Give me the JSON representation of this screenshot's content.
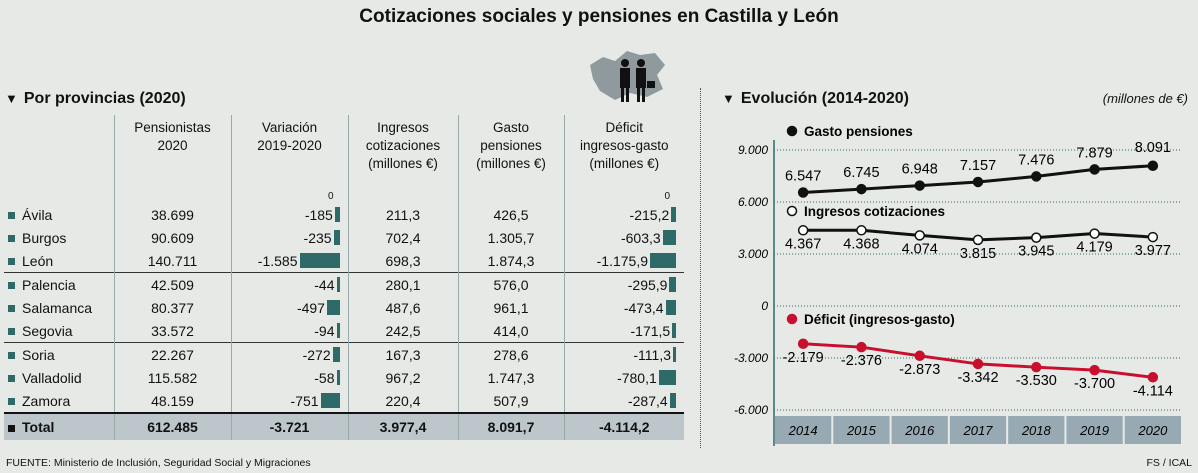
{
  "title": "Cotizaciones sociales y pensiones en Castilla y León",
  "left_header": "Por provincias (2020)",
  "right_header": "Evolución (2014-2020)",
  "units": "(millones de €)",
  "source": "FUENTE: Ministerio de Inclusión, Seguridad Social y Migraciones",
  "credit": "FS / ICAL",
  "table": {
    "columns": [
      "",
      "Pensionistas\n2020",
      "Variación\n2019-2020",
      "Ingresos\ncotizaciones\n(millones €)",
      "Gasto\npensiones\n(millones €)",
      "Déficit\ningresos-gasto\n(millones €)"
    ],
    "zero_label": "0",
    "rows": [
      {
        "name": "Ávila",
        "pens": "38.699",
        "var": "-185",
        "var_v": -185,
        "ing": "211,3",
        "gas": "426,5",
        "def": "-215,2",
        "def_v": -215.2
      },
      {
        "name": "Burgos",
        "pens": "90.609",
        "var": "-235",
        "var_v": -235,
        "ing": "702,4",
        "gas": "1.305,7",
        "def": "-603,3",
        "def_v": -603.3
      },
      {
        "name": "León",
        "pens": "140.711",
        "var": "-1.585",
        "var_v": -1585,
        "ing": "698,3",
        "gas": "1.874,3",
        "def": "-1.175,9",
        "def_v": -1175.9
      },
      {
        "name": "Palencia",
        "pens": "42.509",
        "var": "-44",
        "var_v": -44,
        "ing": "280,1",
        "gas": "576,0",
        "def": "-295,9",
        "def_v": -295.9
      },
      {
        "name": "Salamanca",
        "pens": "80.377",
        "var": "-497",
        "var_v": -497,
        "ing": "487,6",
        "gas": "961,1",
        "def": "-473,4",
        "def_v": -473.4
      },
      {
        "name": "Segovia",
        "pens": "33.572",
        "var": "-94",
        "var_v": -94,
        "ing": "242,5",
        "gas": "414,0",
        "def": "-171,5",
        "def_v": -171.5
      },
      {
        "name": "Soria",
        "pens": "22.267",
        "var": "-272",
        "var_v": -272,
        "ing": "167,3",
        "gas": "278,6",
        "def": "-111,3",
        "def_v": -111.3
      },
      {
        "name": "Valladolid",
        "pens": "115.582",
        "var": "-58",
        "var_v": -58,
        "ing": "967,2",
        "gas": "1.747,3",
        "def": "-780,1",
        "def_v": -780.1
      },
      {
        "name": "Zamora",
        "pens": "48.159",
        "var": "-751",
        "var_v": -751,
        "ing": "220,4",
        "gas": "507,9",
        "def": "-287,4",
        "def_v": -287.4
      }
    ],
    "total": {
      "name": "Total",
      "pens": "612.485",
      "var": "-3.721",
      "ing": "3.977,4",
      "gas": "8.091,7",
      "def": "-4.114,2"
    }
  },
  "chart_data": {
    "type": "line",
    "x": [
      "2014",
      "2015",
      "2016",
      "2017",
      "2018",
      "2019",
      "2020"
    ],
    "ylim": [
      -6000,
      9000
    ],
    "yticks": [
      {
        "v": 9000,
        "label": "9.000"
      },
      {
        "v": 6000,
        "label": "6.000"
      },
      {
        "v": 3000,
        "label": "3.000"
      },
      {
        "v": 0,
        "label": "0"
      },
      {
        "v": -3000,
        "label": "-3.000"
      },
      {
        "v": -6000,
        "label": "-6.000"
      }
    ],
    "series": [
      {
        "name": "Gasto pensiones",
        "color": "#111111",
        "marker": "filled",
        "values": [
          6547,
          6745,
          6948,
          7157,
          7476,
          7879,
          8091
        ],
        "labels": [
          "6.547",
          "6.745",
          "6.948",
          "7.157",
          "7.476",
          "7.879",
          "8.091"
        ]
      },
      {
        "name": "Ingresos cotizaciones",
        "color": "#111111",
        "marker": "open",
        "values": [
          4367,
          4368,
          4074,
          3815,
          3945,
          4179,
          3977
        ],
        "labels": [
          "4.367",
          "4.368",
          "4.074",
          "3.815",
          "3.945",
          "4.179",
          "3.977"
        ]
      },
      {
        "name": "Déficit (ingresos-gasto)",
        "color": "#c8102e",
        "marker": "filled",
        "values": [
          -2179,
          -2376,
          -2873,
          -3342,
          -3530,
          -3700,
          -4114
        ],
        "labels": [
          "-2.179",
          "-2.376",
          "-2.873",
          "-3.342",
          "-3.530",
          "-3.700",
          "-4.114"
        ]
      }
    ]
  }
}
